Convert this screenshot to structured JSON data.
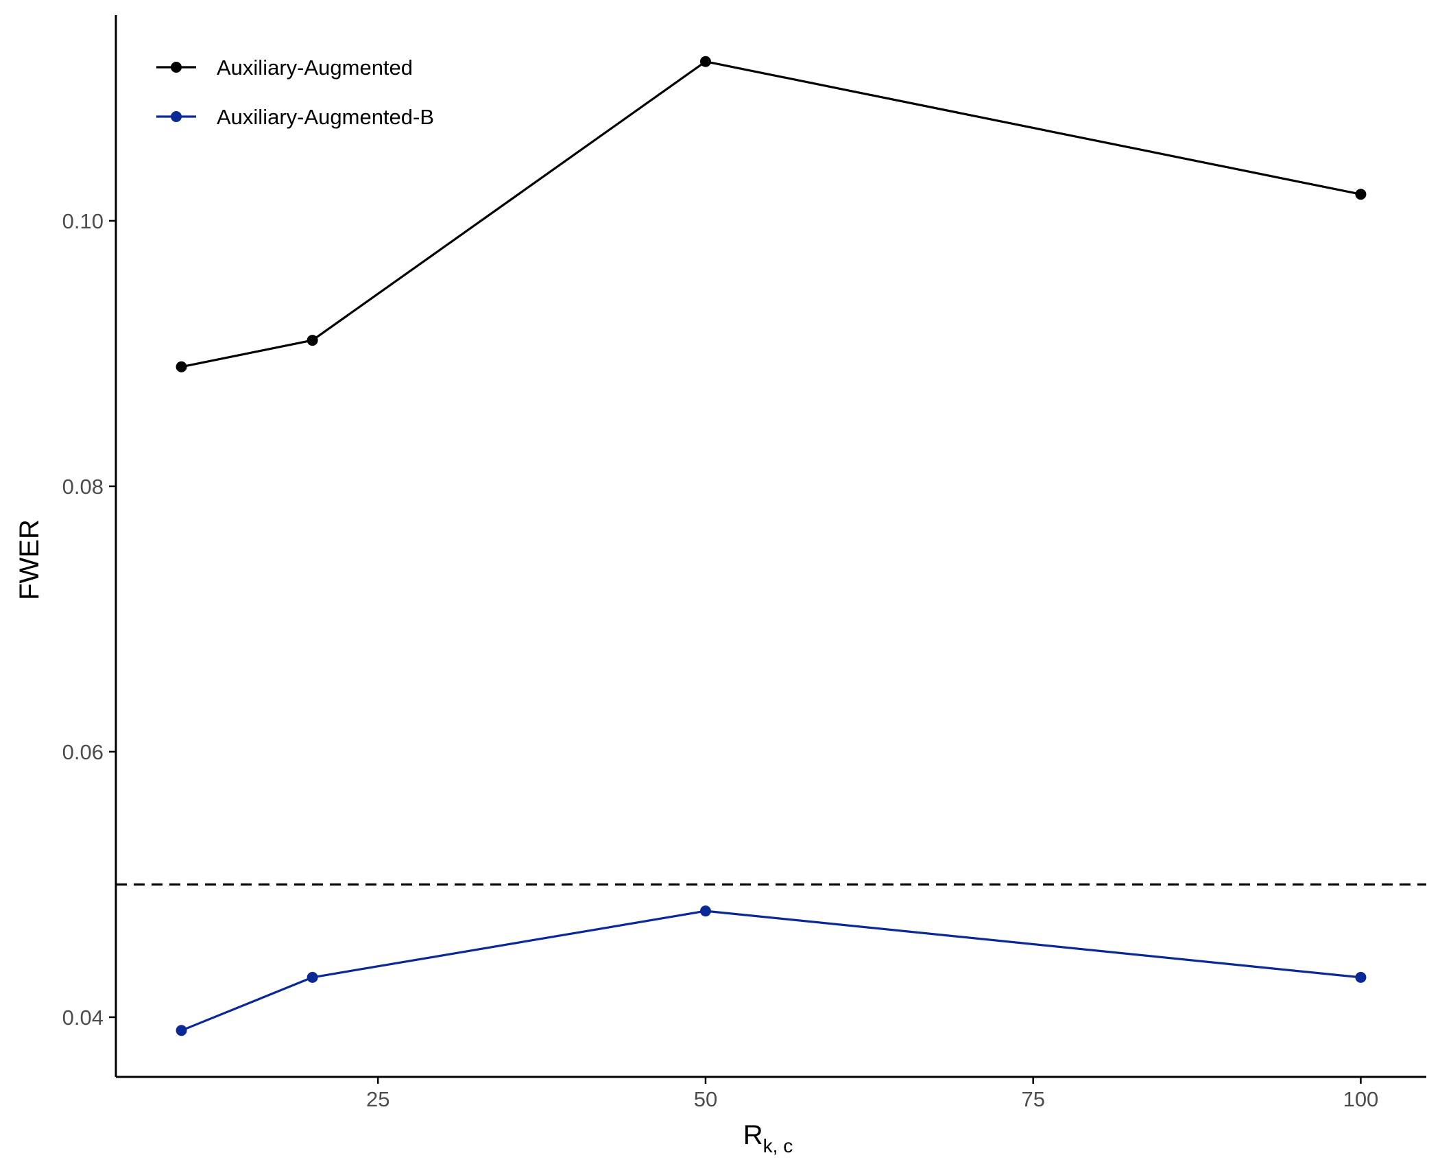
{
  "chart_data": {
    "type": "line",
    "title": "",
    "xlabel": "R",
    "xlabel_subscript": "k, c",
    "ylabel": "FWER",
    "x": [
      10,
      20,
      50,
      100
    ],
    "xlim": [
      5,
      105
    ],
    "ylim": [
      0.0355,
      0.1155
    ],
    "xticks": [
      25,
      50,
      75,
      100
    ],
    "xtick_labels": [
      "25",
      "50",
      "75",
      "100"
    ],
    "yticks": [
      0.04,
      0.06,
      0.08,
      0.1
    ],
    "ytick_labels": [
      "0.04",
      "0.06",
      "0.08",
      "0.10"
    ],
    "series": [
      {
        "name": "Auxiliary-Augmented",
        "color": "#000000",
        "values": [
          0.089,
          0.091,
          0.112,
          0.102
        ]
      },
      {
        "name": "Auxiliary-Augmented-B",
        "color": "#0a2896",
        "values": [
          0.039,
          0.043,
          0.048,
          0.043
        ]
      }
    ],
    "reference_line": {
      "y": 0.05,
      "style": "dashed",
      "color": "#000000"
    },
    "grid": false,
    "legend_position": "top-left"
  }
}
